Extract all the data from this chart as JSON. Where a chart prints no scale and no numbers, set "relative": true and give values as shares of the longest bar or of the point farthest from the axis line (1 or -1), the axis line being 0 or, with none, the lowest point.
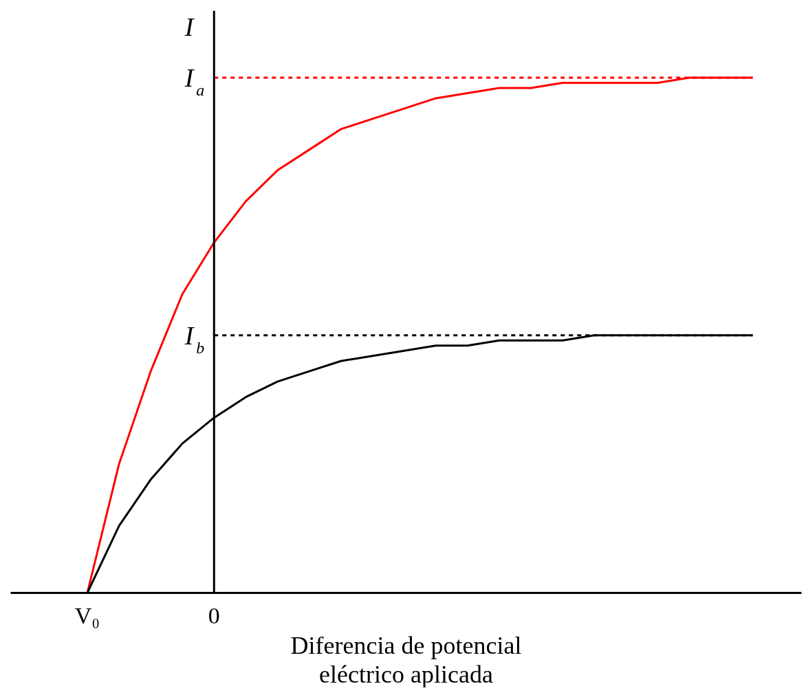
{
  "chart_data": {
    "type": "line",
    "relative": true,
    "ylabel": "I",
    "xlabel": "Diferencia de potencial\neléctrico aplicada",
    "grid": false,
    "marker": "none",
    "categories": [
      "V₀",
      null,
      null,
      null,
      "0",
      null,
      null,
      null,
      null,
      null,
      null,
      null,
      null,
      null,
      null,
      null,
      null,
      null,
      null,
      null,
      null,
      null
    ],
    "series": [
      {
        "color": "#ff0000",
        "line_style": "solid",
        "values": [
          0,
          0.25,
          0.43,
          0.58,
          0.68,
          0.76,
          0.82,
          0.86,
          0.9,
          0.92,
          0.94,
          0.96,
          0.97,
          0.98,
          0.98,
          0.99,
          0.99,
          0.99,
          0.99,
          1,
          1,
          1
        ]
      },
      {
        "color": "#000000",
        "line_style": "solid",
        "values": [
          0,
          0.13,
          0.22,
          0.29,
          0.34,
          0.38,
          0.41,
          0.43,
          0.45,
          0.46,
          0.47,
          0.48,
          0.48,
          0.49,
          0.49,
          0.49,
          0.5,
          0.5,
          0.5,
          0.5,
          0.5,
          0.5
        ]
      },
      {
        "color": "#ff0000",
        "line_style": "dashed",
        "values": [
          null,
          null,
          null,
          null,
          1,
          1,
          1,
          1,
          1,
          1,
          1,
          1,
          1,
          1,
          1,
          1,
          1,
          1,
          1,
          1,
          1,
          1
        ]
      },
      {
        "color": "#000000",
        "line_style": "dashed",
        "values": [
          null,
          null,
          null,
          null,
          0.5,
          0.5,
          0.5,
          0.5,
          0.5,
          0.5,
          0.5,
          0.5,
          0.5,
          0.5,
          0.5,
          0.5,
          0.5,
          0.5,
          0.5,
          0.5,
          0.5,
          0.5
        ]
      }
    ],
    "annotations": [
      "I$_{a}$",
      "I$_{b}$"
    ]
  }
}
